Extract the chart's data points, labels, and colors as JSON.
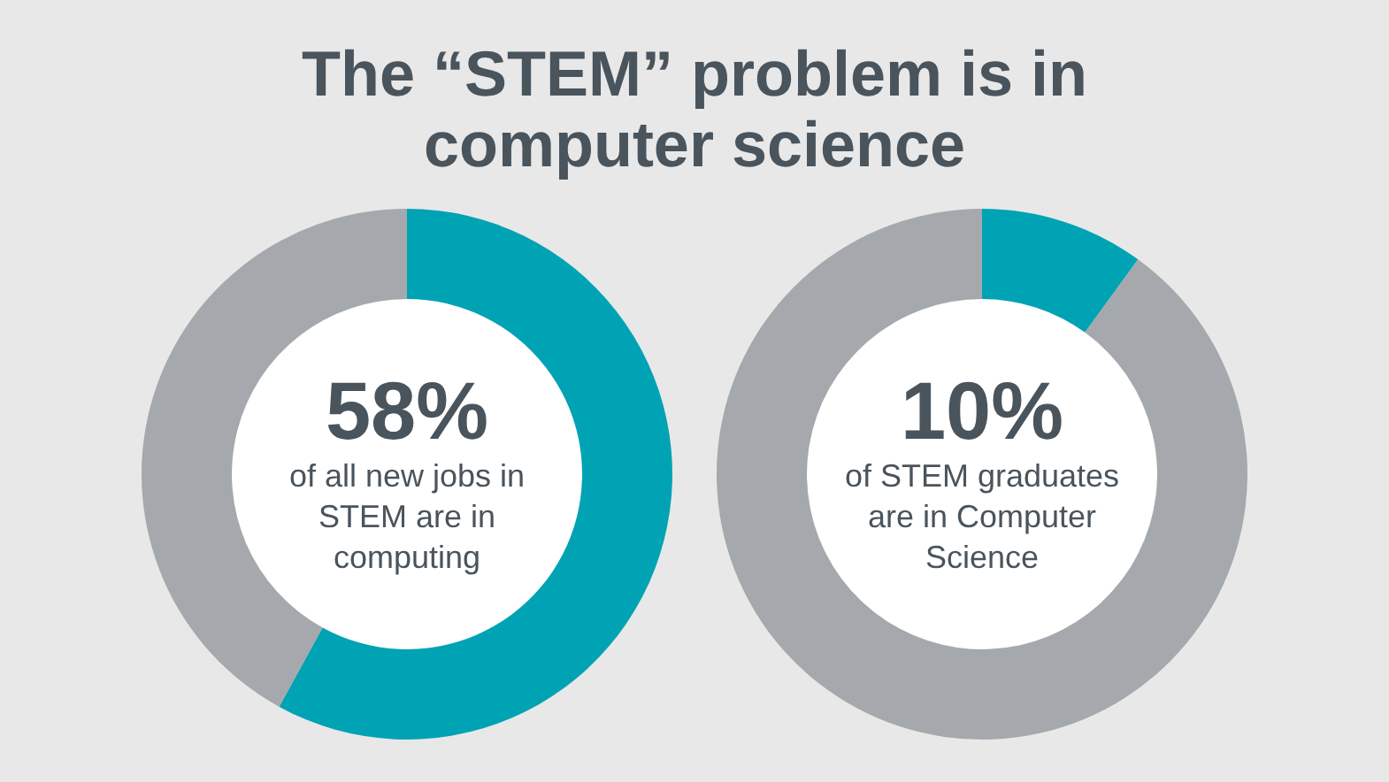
{
  "chart_data": [
    {
      "type": "donut",
      "title": "The “STEM” problem is in computer science",
      "categories": [
        null,
        null
      ],
      "values": [
        58,
        42
      ],
      "colors": [
        "#00a3b4",
        "#a5a8ac"
      ],
      "annotations": [
        "58%",
        "of all new jobs in STEM are in computing"
      ]
    },
    {
      "type": "donut",
      "categories": [
        null,
        null
      ],
      "values": [
        10,
        90
      ],
      "colors": [
        "#00a3b4",
        "#a5a8ac"
      ],
      "annotations": [
        "10%",
        "of STEM graduates are in Computer Science"
      ]
    }
  ]
}
